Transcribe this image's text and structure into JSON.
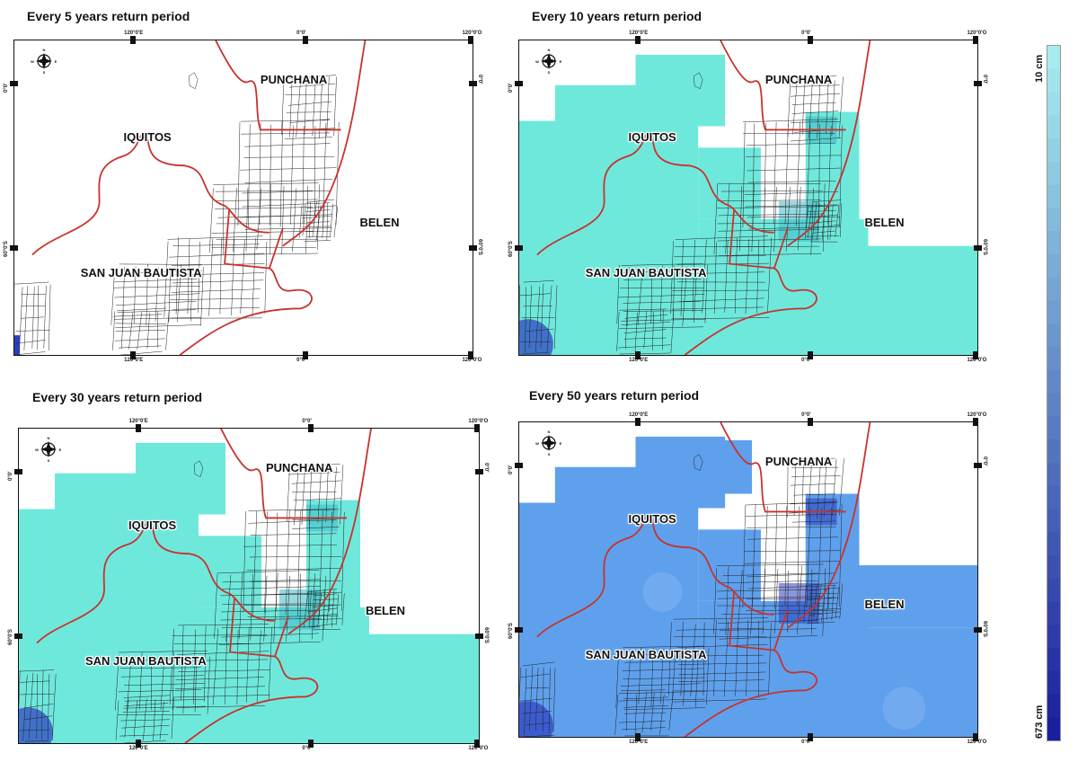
{
  "panels": [
    {
      "id": "p5",
      "title": "Every 5 years return period",
      "intensity": 0
    },
    {
      "id": "p10",
      "title": "Every 10 years return period",
      "intensity": 1
    },
    {
      "id": "p30",
      "title": "Every 30 years return period",
      "intensity": 1
    },
    {
      "id": "p50",
      "title": "Every 50 years return period",
      "intensity": 2
    }
  ],
  "axis_ticks": {
    "lon_left": "120°0'E",
    "lon_center": "0°0'",
    "lon_right": "120°0'O",
    "lat_top": "0°0'",
    "lat_bottom_left": "60°0'S",
    "lat_bottom_right": "60°0'S"
  },
  "places": {
    "punchana": "PUNCHANA",
    "iquitos": "IQUITOS",
    "belen": "BELEN",
    "san_juan": "SAN JUAN BAUTISTA"
  },
  "compass_letters": {
    "n": "N",
    "s": "S",
    "e": "E",
    "w": "W"
  },
  "legend": {
    "min_label": "10 cm",
    "max_label": "673 cm",
    "color_min": "#a6ecef",
    "color_max": "#1a1f9c"
  },
  "colors": {
    "flood_light": "#6fe8dc",
    "flood_medium": "#5fa0ec",
    "flood_deep": "#2c3fc0",
    "river": "#c8322c",
    "streets": "#222222"
  }
}
